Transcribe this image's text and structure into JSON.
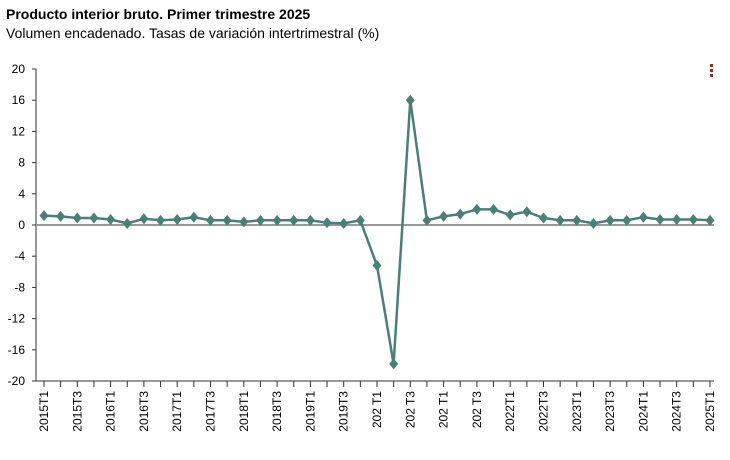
{
  "title": "Producto interior bruto. Primer trimestre 2025",
  "subtitle": "Volumen encadenado. Tasas de variación intertrimestral (%)",
  "menu_icon": "vertical-dots-icon",
  "chart_data": {
    "type": "line",
    "title": "Producto interior bruto. Primer trimestre 2025",
    "subtitle": "Volumen encadenado. Tasas de variación intertrimestral (%)",
    "ylim": [
      -20,
      20
    ],
    "yticks": [
      20,
      16,
      12,
      8,
      4,
      0,
      -4,
      -8,
      -12,
      -16,
      -20
    ],
    "xticklabels": [
      "2015T1",
      "2015T3",
      "2016T1",
      "2016T3",
      "2017T1",
      "2017T3",
      "2018T1",
      "2018T3",
      "2019T1",
      "2019T3",
      "202 T1",
      "202 T3",
      "202 T1",
      "202 T3",
      "2022T1",
      "2022T3",
      "2023T1",
      "2023T3",
      "2024T1",
      "2024T3",
      "2025T1"
    ],
    "categories": [
      "2015T1",
      "2015T2",
      "2015T3",
      "2015T4",
      "2016T1",
      "2016T2",
      "2016T3",
      "2016T4",
      "2017T1",
      "2017T2",
      "2017T3",
      "2017T4",
      "2018T1",
      "2018T2",
      "2018T3",
      "2018T4",
      "2019T1",
      "2019T2",
      "2019T3",
      "2019T4",
      "2020T1",
      "2020T2",
      "2020T3",
      "2020T4",
      "2021T1",
      "2021T2",
      "2021T3",
      "2021T4",
      "2022T1",
      "2022T2",
      "2022T3",
      "2022T4",
      "2023T1",
      "2023T2",
      "2023T3",
      "2023T4",
      "2024T1",
      "2024T2",
      "2024T3",
      "2024T4",
      "2025T1"
    ],
    "series": [
      {
        "color": "#4a7f76",
        "values": [
          1.2,
          1.1,
          0.9,
          0.9,
          0.7,
          0.2,
          0.8,
          0.6,
          0.7,
          1.0,
          0.6,
          0.6,
          0.4,
          0.6,
          0.6,
          0.6,
          0.6,
          0.3,
          0.2,
          0.6,
          -5.2,
          -17.8,
          16.0,
          0.6,
          1.1,
          1.4,
          2.0,
          2.0,
          1.3,
          1.7,
          0.9,
          0.6,
          0.6,
          0.2,
          0.6,
          0.6,
          1.0,
          0.7,
          0.7,
          0.7,
          0.6
        ]
      }
    ],
    "grid": false,
    "legend": "none"
  }
}
